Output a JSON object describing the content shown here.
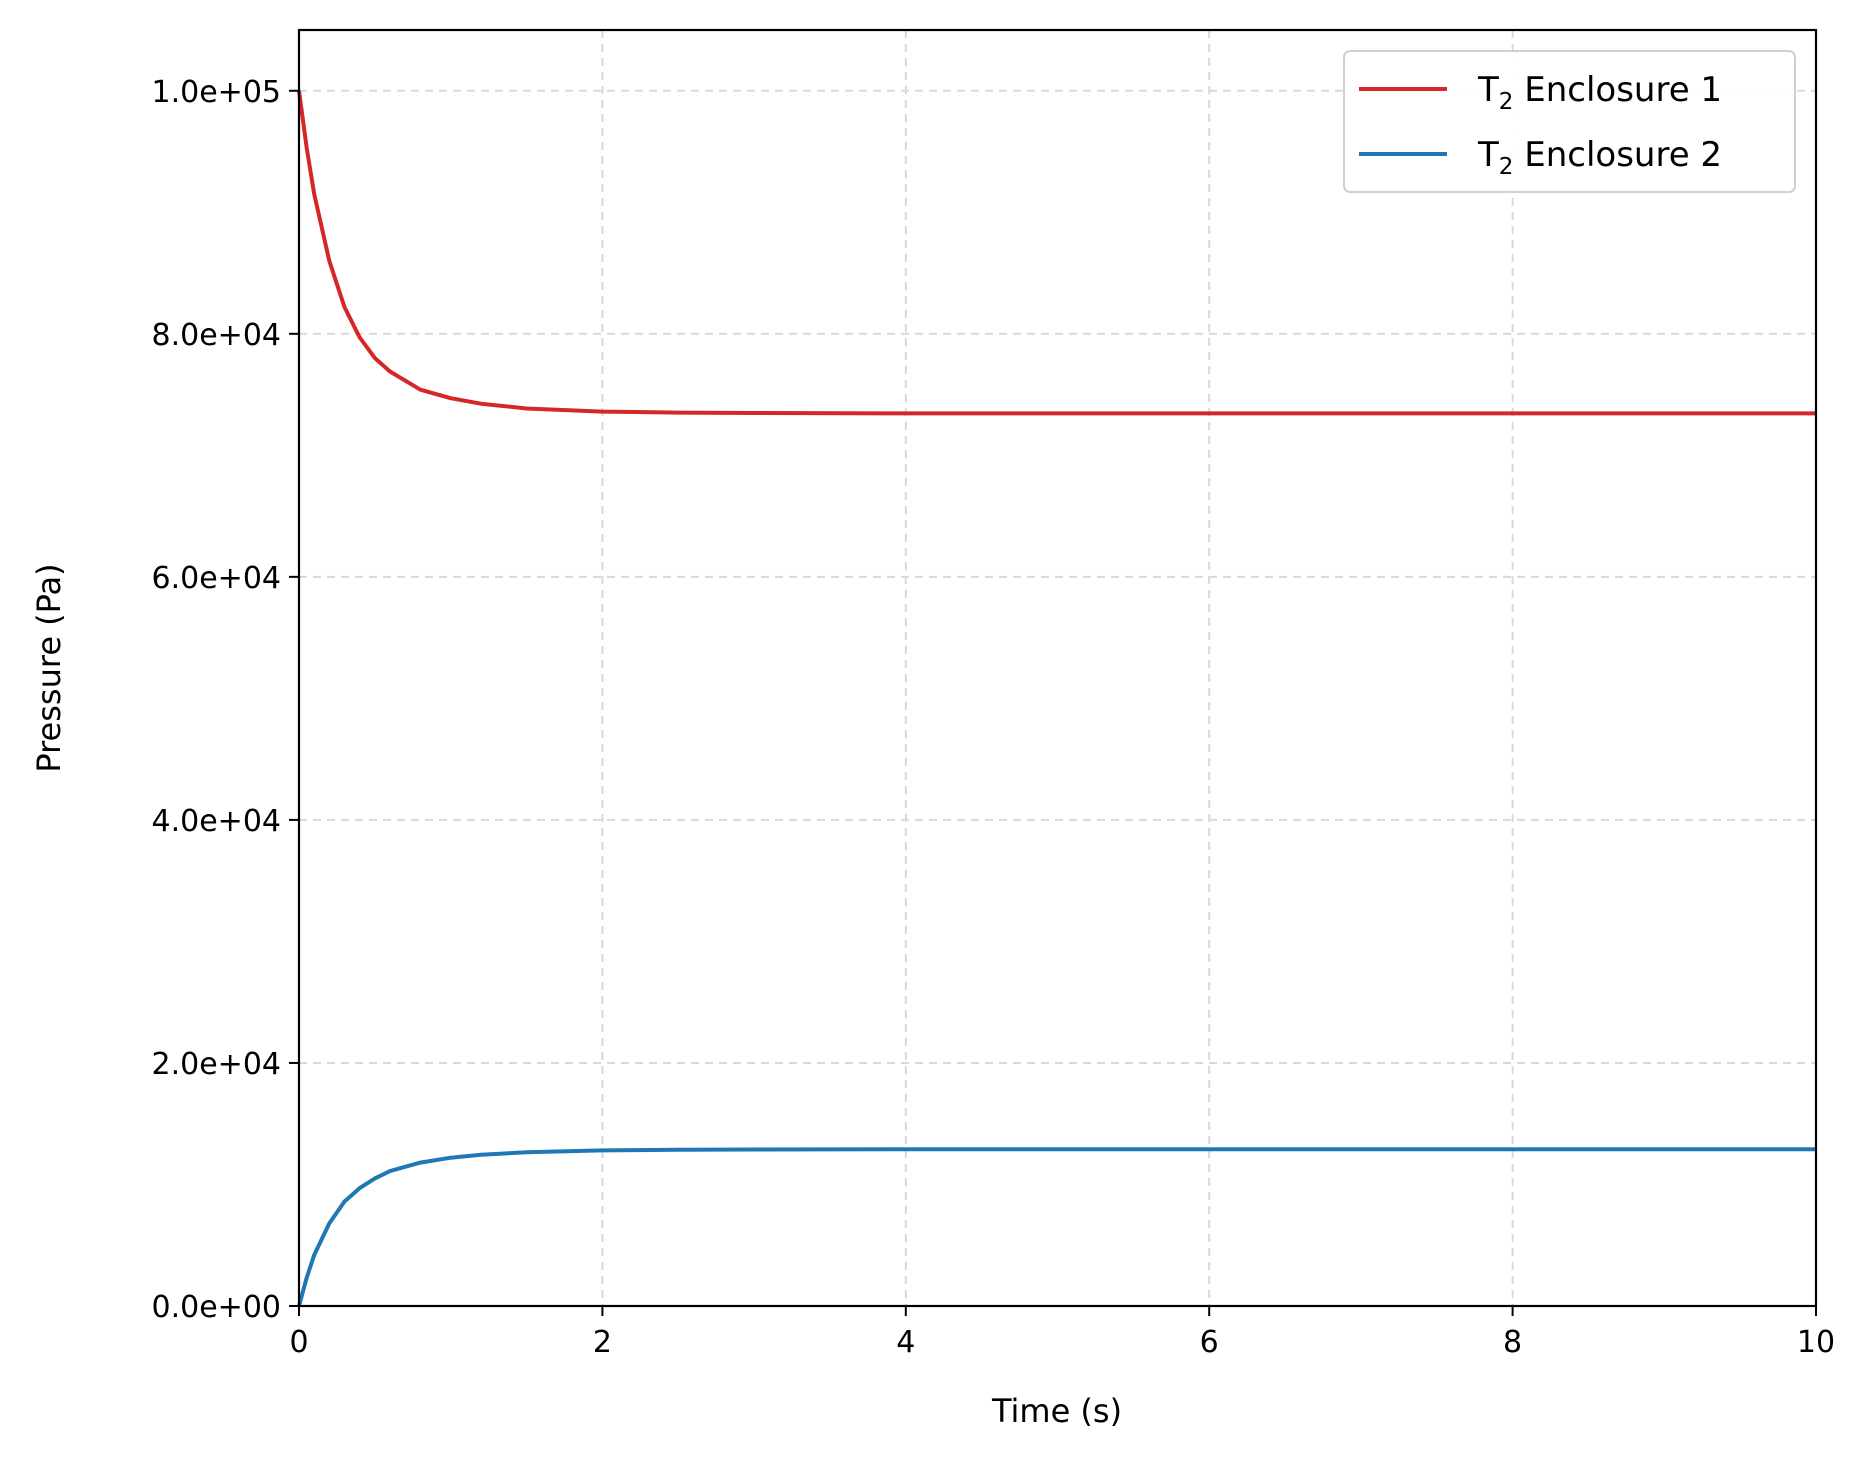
{
  "chart_data": {
    "type": "line",
    "title": "",
    "xlabel": "Time (s)",
    "ylabel": "Pressure (Pa)",
    "xlim": [
      0,
      10
    ],
    "ylim": [
      0,
      105000
    ],
    "x_ticks": [
      0,
      2,
      4,
      6,
      8,
      10
    ],
    "x_tick_labels": [
      "0",
      "2",
      "4",
      "6",
      "8",
      "10"
    ],
    "y_ticks": [
      0,
      20000,
      40000,
      60000,
      80000,
      100000
    ],
    "y_tick_labels": [
      "0.0e+00",
      "2.0e+04",
      "4.0e+04",
      "6.0e+04",
      "8.0e+04",
      "1.0e+05"
    ],
    "grid": true,
    "legend_position": "top-right",
    "x": [
      0,
      0.05,
      0.1,
      0.2,
      0.3,
      0.4,
      0.5,
      0.6,
      0.8,
      1.0,
      1.2,
      1.5,
      2.0,
      2.5,
      3.0,
      4.0,
      5.0,
      6.0,
      7.0,
      8.0,
      9.0,
      10.0
    ],
    "series": [
      {
        "name": "T₂ Enclosure 1",
        "name_base": "T",
        "name_sub": "2",
        "name_rest": " Enclosure 1",
        "color": "#d62728",
        "values": [
          100000,
          95350,
          91500,
          86000,
          82200,
          79700,
          78000,
          76900,
          75400,
          74700,
          74250,
          73850,
          73600,
          73520,
          73480,
          73450,
          73450,
          73450,
          73450,
          73450,
          73450,
          73450
        ]
      },
      {
        "name": "T₂ Enclosure 2",
        "name_base": "T",
        "name_sub": "2",
        "name_rest": " Enclosure 2",
        "color": "#1f77b4",
        "values": [
          0,
          2300,
          4200,
          6800,
          8600,
          9700,
          10500,
          11100,
          11800,
          12200,
          12450,
          12650,
          12800,
          12850,
          12880,
          12900,
          12900,
          12900,
          12900,
          12900,
          12900,
          12900
        ]
      }
    ]
  }
}
